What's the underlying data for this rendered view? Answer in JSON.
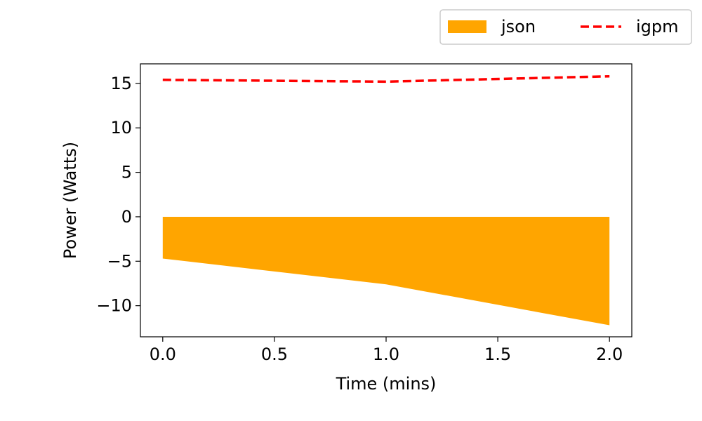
{
  "chart_data": {
    "type": "area",
    "xlabel": "Time (mins)",
    "ylabel": "Power (Watts)",
    "xlim": [
      -0.1,
      2.1
    ],
    "ylim": [
      -13.5,
      17.2
    ],
    "x_ticks": [
      0.0,
      0.5,
      1.0,
      1.5,
      2.0
    ],
    "x_tick_labels": [
      "0.0",
      "0.5",
      "1.0",
      "1.5",
      "2.0"
    ],
    "y_ticks": [
      -10,
      -5,
      0,
      5,
      10,
      15
    ],
    "y_tick_labels": [
      "−10",
      "−5",
      "0",
      "5",
      "10",
      "15"
    ],
    "grid": false,
    "legend_position": "above-right",
    "series": [
      {
        "name": "json",
        "kind": "area",
        "color": "#FFA500",
        "x": [
          0.0,
          1.0,
          2.0
        ],
        "y": [
          -4.7,
          -7.6,
          -12.2
        ],
        "baseline": 0
      },
      {
        "name": "igpm",
        "kind": "line",
        "style": "dashed",
        "color": "#FF0000",
        "x": [
          0.0,
          1.0,
          2.0
        ],
        "y": [
          15.4,
          15.2,
          15.8
        ]
      }
    ]
  }
}
